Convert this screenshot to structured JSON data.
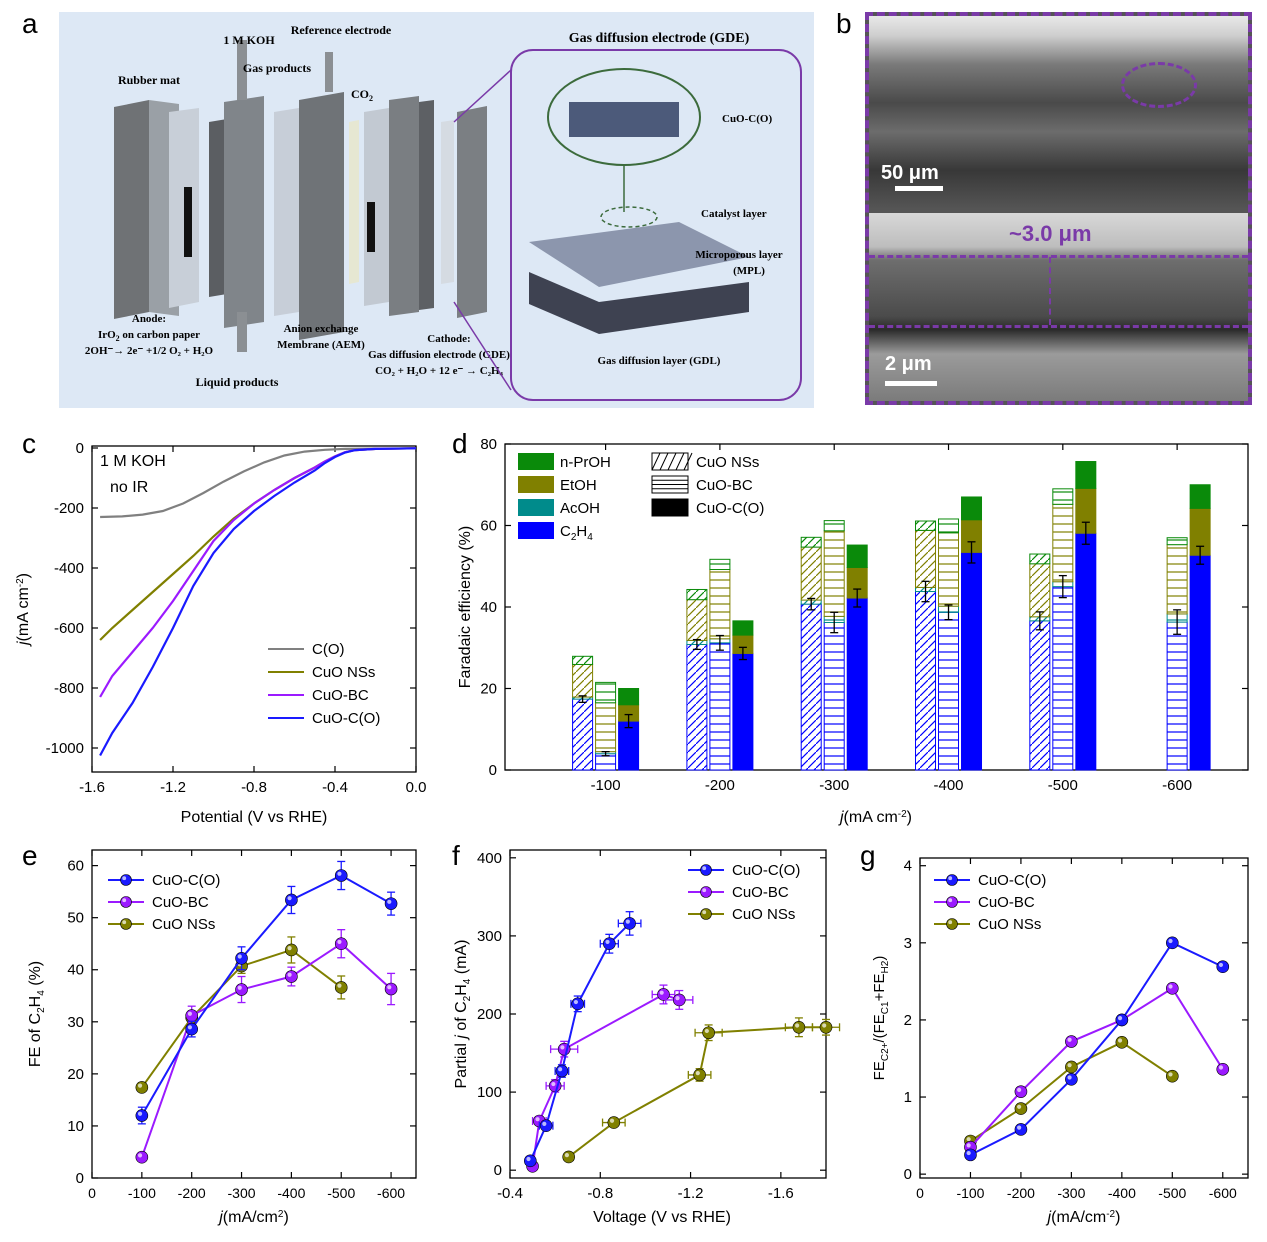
{
  "panel_labels": {
    "a": "a",
    "b": "b",
    "c": "c",
    "d": "d",
    "e": "e",
    "f": "f",
    "g": "g"
  },
  "colors": {
    "cuo_co": "#1a1aff",
    "cuo_bc": "#9b1aff",
    "cuo_ns": "#808000",
    "co": "#808080",
    "npro": "#0a8a0a",
    "etoh": "#808000",
    "acoh": "#008b8b",
    "c2h4": "#0000ff",
    "frame": "#7a3aa8"
  },
  "panel_a": {
    "gde_title": "Gas diffusion electrode (GDE)",
    "koh": "1 M KOH",
    "reference": "Reference electrode",
    "gas_products": "Gas products",
    "co2": "CO",
    "co2_sub": "2",
    "rubber": "Rubber mat",
    "cuo": "CuO-C(O)",
    "catalyst": "Catalyst layer",
    "mpl1": "Microporous layer",
    "mpl2": "(MPL)",
    "gdl": "Gas diffusion layer (GDL)",
    "anode_title": "Anode:",
    "anode_line1": "IrO",
    "anode_line1_sub": "2",
    "anode_line1_tail": " on carbon paper",
    "anode_eq": "2OH⁻→ 2e⁻ +1/2 O₂ + H₂O",
    "liquid": "Liquid products",
    "aem1": "Anion exchange",
    "aem2": "Membrane (AEM)",
    "cathode_title": "Cathode:",
    "cathode_line1": "Gas diffusion electrode (GDE)",
    "cathode_eq": "CO₂ + H₂O + 12 e⁻ → C₂H₄"
  },
  "panel_b": {
    "scale_top": "50 μm",
    "scale_bottom": "2 μm",
    "thickness": "~3.0 μm"
  },
  "chart_data": [
    {
      "id": "c",
      "type": "line",
      "title": "",
      "annotations": [
        "1 M KOH",
        "no IR"
      ],
      "xlabel": "Potential (V vs RHE)",
      "ylabel_prefix": "j",
      "ylabel_main": "(mA cm",
      "ylabel_sup": "-2",
      "ylabel_end": ")",
      "xlim": [
        -1.6,
        0.0
      ],
      "ylim": [
        -1080,
        0
      ],
      "xticks": [
        -1.6,
        -1.2,
        -0.8,
        -0.4,
        0.0
      ],
      "xtick_labels": [
        "-1.6",
        "-1.2",
        "-0.8",
        "-0.4",
        "0.0"
      ],
      "yticks": [
        0,
        -200,
        -400,
        -600,
        -800,
        -1000
      ],
      "ytick_labels": [
        "0",
        "-200",
        "-400",
        "-600",
        "-800",
        "-1000"
      ],
      "series": [
        {
          "name": "C(O)",
          "color": "#808080",
          "x": [
            -1.56,
            -1.45,
            -1.35,
            -1.25,
            -1.15,
            -1.05,
            -0.95,
            -0.85,
            -0.75,
            -0.65,
            -0.55,
            -0.45,
            -0.35,
            -0.2,
            0.0
          ],
          "y": [
            -230,
            -228,
            -222,
            -210,
            -185,
            -150,
            -112,
            -78,
            -48,
            -25,
            -12,
            -6,
            -3,
            -2,
            -1
          ]
        },
        {
          "name": "CuO NSs",
          "color": "#808000",
          "x": [
            -1.56,
            -1.5,
            -1.4,
            -1.3,
            -1.2,
            -1.1,
            -1.0,
            -0.9,
            -0.8,
            -0.7,
            -0.6,
            -0.5,
            -0.45,
            -0.4,
            -0.35,
            -0.3,
            -0.2,
            0.0
          ],
          "y": [
            -640,
            -600,
            -540,
            -480,
            -420,
            -360,
            -295,
            -235,
            -185,
            -140,
            -100,
            -65,
            -45,
            -28,
            -14,
            -7,
            -3,
            -1
          ]
        },
        {
          "name": "CuO-BC",
          "color": "#9b1aff",
          "x": [
            -1.56,
            -1.5,
            -1.4,
            -1.3,
            -1.2,
            -1.1,
            -1.0,
            -0.9,
            -0.8,
            -0.7,
            -0.6,
            -0.5,
            -0.45,
            -0.4,
            -0.35,
            -0.3,
            -0.2,
            0.0
          ],
          "y": [
            -830,
            -760,
            -680,
            -600,
            -510,
            -410,
            -310,
            -240,
            -185,
            -140,
            -100,
            -65,
            -45,
            -28,
            -14,
            -7,
            -3,
            -1
          ]
        },
        {
          "name": "CuO-C(O)",
          "color": "#1a1aff",
          "x": [
            -1.56,
            -1.5,
            -1.4,
            -1.3,
            -1.2,
            -1.1,
            -1.0,
            -0.9,
            -0.8,
            -0.7,
            -0.6,
            -0.5,
            -0.45,
            -0.4,
            -0.35,
            -0.3,
            -0.2,
            0.0
          ],
          "y": [
            -1025,
            -950,
            -850,
            -730,
            -600,
            -460,
            -350,
            -270,
            -210,
            -160,
            -115,
            -75,
            -50,
            -30,
            -15,
            -7,
            -3,
            -1
          ]
        }
      ]
    },
    {
      "id": "d",
      "type": "bar",
      "xlabel_prefix": "j",
      "xlabel_main": "(mA cm",
      "xlabel_sup": "-2",
      "xlabel_end": ")",
      "ylabel": "Faradaic efficiency (%)",
      "categories": [
        "-100",
        "-200",
        "-300",
        "-400",
        "-500",
        "-600"
      ],
      "ylim": [
        0,
        80
      ],
      "yticks": [
        0,
        20,
        40,
        60,
        80
      ],
      "ytick_labels": [
        "0",
        "20",
        "40",
        "60",
        "80"
      ],
      "stack_legend": [
        "n-PrOH",
        "EtOH",
        "AcOH",
        "C2H4"
      ],
      "catalyst_legend": [
        "CuO NSs",
        "CuO-BC",
        "CuO-C(O)"
      ],
      "catalysts": [
        {
          "name": "CuO NSs",
          "c2h4": [
            17.4,
            30.8,
            40.7,
            43.8,
            36.6,
            null
          ],
          "acoh": [
            0.5,
            1,
            1,
            1,
            1,
            null
          ],
          "etoh": [
            8,
            10,
            13,
            14,
            13,
            null
          ],
          "npro": [
            2,
            2.5,
            2.4,
            2.3,
            2.4,
            null
          ],
          "err": [
            0.8,
            1.2,
            1.4,
            2.5,
            2.2,
            null
          ]
        },
        {
          "name": "CuO-BC",
          "c2h4": [
            4.0,
            31.2,
            36.2,
            38.7,
            45.0,
            36.3
          ],
          "acoh": [
            0.5,
            1,
            1.5,
            1.5,
            1.2,
            2
          ],
          "etoh": [
            12,
            17,
            21,
            18,
            19,
            17
          ],
          "npro": [
            5,
            2.5,
            2.5,
            3.4,
            3.8,
            1.7
          ],
          "err": [
            0.5,
            1.8,
            2.5,
            1.8,
            2.7,
            3.0
          ]
        },
        {
          "name": "CuO-C(O)",
          "c2h4": [
            12.0,
            28.6,
            42.2,
            53.4,
            58.1,
            52.7
          ],
          "acoh": [
            0,
            0,
            0,
            0,
            0,
            0
          ],
          "etoh": [
            4,
            4.5,
            7.5,
            8,
            11,
            11.5
          ],
          "npro": [
            4,
            3.5,
            5.5,
            5.6,
            6.6,
            5.8
          ],
          "err": [
            1.6,
            1.5,
            2.2,
            2.6,
            2.7,
            2.2
          ]
        }
      ]
    },
    {
      "id": "e",
      "type": "line",
      "xlabel_prefix": "j",
      "xlabel_main": "(mA/cm",
      "xlabel_sup": "2",
      "xlabel_end": ")",
      "ylabel": "FE of C2H4 (%)",
      "ylabel_main": "FE of C",
      "ylabel_sub1": "2",
      "ylabel_mid": "H",
      "ylabel_sub2": "4",
      "ylabel_end": " (%)",
      "xlim": [
        0,
        -650
      ],
      "ylim": [
        0,
        63
      ],
      "xticks": [
        0,
        -100,
        -200,
        -300,
        -400,
        -500,
        -600
      ],
      "xtick_labels": [
        "0",
        "-100",
        "-200",
        "-300",
        "-400",
        "-500",
        "-600"
      ],
      "yticks": [
        0,
        10,
        20,
        30,
        40,
        50,
        60
      ],
      "ytick_labels": [
        "0",
        "10",
        "20",
        "30",
        "40",
        "50",
        "60"
      ],
      "series": [
        {
          "name": "CuO-C(O)",
          "color": "#1a1aff",
          "x": [
            -100,
            -200,
            -300,
            -400,
            -500,
            -600
          ],
          "y": [
            12.0,
            28.6,
            42.2,
            53.4,
            58.1,
            52.7
          ],
          "err": [
            1.6,
            1.5,
            2.2,
            2.6,
            2.7,
            2.2
          ]
        },
        {
          "name": "CuO-BC",
          "color": "#9b1aff",
          "x": [
            -100,
            -200,
            -300,
            -400,
            -500,
            -600
          ],
          "y": [
            4.0,
            31.2,
            36.2,
            38.7,
            45.0,
            36.3
          ],
          "err": [
            0.5,
            1.8,
            2.5,
            1.8,
            2.7,
            3.0
          ]
        },
        {
          "name": "CuO NSs",
          "color": "#808000",
          "x": [
            -100,
            -200,
            -300,
            -400,
            -500
          ],
          "y": [
            17.4,
            30.8,
            40.7,
            43.8,
            36.6
          ],
          "err": [
            0.8,
            1.2,
            1.4,
            2.5,
            2.2
          ]
        }
      ]
    },
    {
      "id": "f",
      "type": "scatter",
      "xlabel": "Voltage (V vs RHE)",
      "ylabel_main": "Partial ",
      "ylabel_j": "j",
      "ylabel_mid": " of C",
      "ylabel_sub1": "2",
      "ylabel_h": "H",
      "ylabel_sub2": "4",
      "ylabel_end": " (mA)",
      "xlim": [
        -0.4,
        -1.8
      ],
      "ylim": [
        -10,
        410
      ],
      "xticks": [
        -0.4,
        -0.8,
        -1.2,
        -1.6
      ],
      "xtick_labels": [
        "-0.4",
        "-0.8",
        "-1.2",
        "-1.6"
      ],
      "yticks": [
        0,
        100,
        200,
        300,
        400
      ],
      "ytick_labels": [
        "0",
        "100",
        "200",
        "300",
        "400"
      ],
      "series": [
        {
          "name": "CuO-C(O)",
          "color": "#1a1aff",
          "x": [
            -0.49,
            -0.56,
            -0.63,
            -0.7,
            -0.84,
            -0.93
          ],
          "y": [
            12,
            57,
            127,
            213,
            290,
            316
          ],
          "xerr": [
            0.02,
            0.03,
            0.03,
            0.03,
            0.04,
            0.05
          ],
          "yerr": [
            3,
            5,
            8,
            10,
            12,
            15
          ]
        },
        {
          "name": "CuO-BC",
          "color": "#9b1aff",
          "x": [
            -0.5,
            -0.53,
            -0.6,
            -0.64,
            -1.08,
            -1.15
          ],
          "y": [
            5,
            63,
            108,
            155,
            225,
            218
          ],
          "xerr": [
            0.01,
            0.03,
            0.04,
            0.06,
            0.05,
            0.06
          ],
          "yerr": [
            3,
            5,
            8,
            10,
            12,
            12
          ]
        },
        {
          "name": "CuO NSs",
          "color": "#808000",
          "x": [
            -0.66,
            -0.86,
            -1.24,
            -1.28,
            -1.68,
            -1.8
          ],
          "y": [
            17,
            61,
            122,
            176,
            183,
            183
          ],
          "xerr": [
            0.02,
            0.05,
            0.05,
            0.06,
            0.06,
            0.06
          ],
          "yerr": [
            3,
            5,
            8,
            10,
            12,
            10
          ]
        }
      ]
    },
    {
      "id": "g",
      "type": "line",
      "xlabel_prefix": "j",
      "xlabel_main": "(mA/cm",
      "xlabel_sup": "-2",
      "xlabel_end": ")",
      "ylabel": "FE_C2+/(FE_C1+FE_H2)",
      "ylabel_main": "FE",
      "ylabel_sub1": "C",
      "ylabel_sub1b": "2+",
      "ylabel_mid": "/(FE",
      "ylabel_sub2": "C",
      "ylabel_sub2b": "1",
      "ylabel_mid2": "+FE",
      "ylabel_sub3": "H",
      "ylabel_sub3b": "2",
      "ylabel_end": ")",
      "xlim": [
        0,
        -650
      ],
      "ylim": [
        -0.05,
        4.1
      ],
      "xticks": [
        0,
        -100,
        -200,
        -300,
        -400,
        -500,
        -600
      ],
      "xtick_labels": [
        "0",
        "-100",
        "-200",
        "-300",
        "-400",
        "-500",
        "-600"
      ],
      "yticks": [
        0,
        1,
        2,
        3,
        4
      ],
      "ytick_labels": [
        "0",
        "1",
        "2",
        "3",
        "4"
      ],
      "series": [
        {
          "name": "CuO-C(O)",
          "color": "#1a1aff",
          "x": [
            -100,
            -200,
            -300,
            -400,
            -500,
            -600
          ],
          "y": [
            0.25,
            0.58,
            1.23,
            2.0,
            3.0,
            2.69
          ]
        },
        {
          "name": "CuO-BC",
          "color": "#9b1aff",
          "x": [
            -100,
            -200,
            -300,
            -400,
            -500,
            -600
          ],
          "y": [
            0.35,
            1.07,
            1.72,
            2.0,
            2.41,
            1.36
          ]
        },
        {
          "name": "CuO NSs",
          "color": "#808000",
          "x": [
            -100,
            -200,
            -300,
            -400,
            -500
          ],
          "y": [
            0.43,
            0.85,
            1.39,
            1.71,
            1.27
          ]
        }
      ]
    }
  ]
}
